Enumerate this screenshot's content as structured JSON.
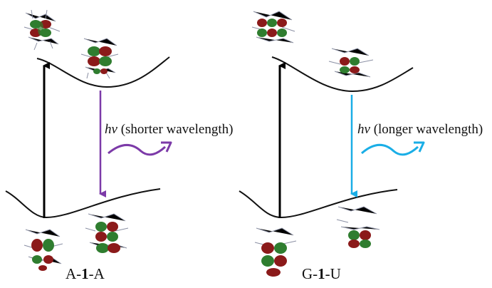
{
  "panels": [
    {
      "emission_label": "hv",
      "emission_desc": "(shorter wavelength)",
      "caption_left": "A-",
      "caption_mid": "1",
      "caption_right": "-A",
      "emission_color": "#7c3aa8"
    },
    {
      "emission_label": "hv",
      "emission_desc": "(longer wavelength)",
      "caption_left": "G-",
      "caption_mid": "1",
      "caption_right": "-U",
      "emission_color": "#1aaee6"
    }
  ],
  "colors": {
    "orbital_red": "#8b1a1a",
    "orbital_green": "#2f7d2f",
    "stick": "#8a8fa3"
  }
}
